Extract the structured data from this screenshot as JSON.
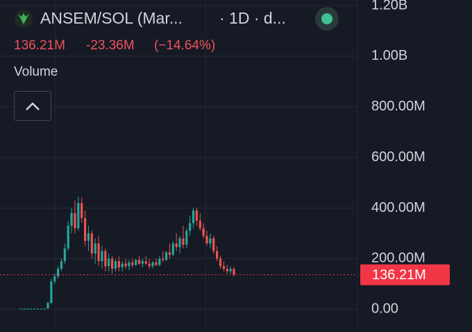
{
  "header": {
    "symbol": "ANSEM/SOL (Mar...",
    "interval": "· 1D · d...",
    "last": "136.21M",
    "change": "-23.36M",
    "change_pct": "(−14.64%)",
    "indicator": "Volume"
  },
  "chart_data": {
    "type": "candlestick",
    "categories": [
      null,
      null,
      null,
      null,
      null,
      null,
      null,
      null,
      null,
      null,
      null,
      null,
      null,
      null,
      null,
      null,
      null,
      null,
      null,
      null,
      null,
      null,
      null,
      null,
      null,
      null,
      null,
      null,
      null,
      null,
      null,
      null,
      null,
      null,
      null,
      null,
      null,
      null,
      null,
      null,
      null,
      null,
      null,
      null,
      null,
      null,
      null,
      null,
      null,
      null,
      null,
      null,
      null,
      null,
      null,
      null,
      null,
      null,
      null,
      null,
      null,
      null,
      null,
      null
    ],
    "open": [
      2,
      2,
      2,
      2,
      2,
      2,
      2,
      2,
      3,
      25,
      110,
      130,
      160,
      190,
      240,
      330,
      380,
      320,
      420,
      360,
      270,
      300,
      220,
      260,
      190,
      230,
      170,
      200,
      160,
      190,
      165,
      180,
      170,
      185,
      175,
      195,
      180,
      190,
      180,
      170,
      185,
      175,
      200,
      195,
      225,
      215,
      260,
      245,
      280,
      255,
      310,
      340,
      390,
      350,
      320,
      290,
      260,
      280,
      230,
      200,
      170,
      160,
      150,
      159.57
    ],
    "high": [
      3,
      3,
      3,
      3,
      3,
      3,
      3,
      3,
      30,
      120,
      140,
      170,
      200,
      260,
      350,
      400,
      430,
      445,
      440,
      390,
      330,
      310,
      280,
      290,
      250,
      240,
      220,
      210,
      200,
      210,
      190,
      200,
      195,
      200,
      200,
      210,
      200,
      210,
      200,
      190,
      200,
      210,
      230,
      230,
      260,
      270,
      300,
      290,
      330,
      320,
      370,
      400,
      400,
      380,
      340,
      310,
      300,
      290,
      250,
      210,
      190,
      175,
      170,
      168
    ],
    "low": [
      1,
      1,
      1,
      1,
      1,
      1,
      1,
      1,
      2,
      20,
      100,
      120,
      150,
      180,
      230,
      300,
      300,
      310,
      340,
      250,
      230,
      200,
      180,
      170,
      160,
      150,
      150,
      140,
      150,
      150,
      150,
      160,
      155,
      165,
      170,
      175,
      165,
      175,
      160,
      160,
      170,
      170,
      185,
      190,
      200,
      210,
      230,
      220,
      240,
      240,
      290,
      320,
      330,
      310,
      280,
      250,
      240,
      220,
      190,
      160,
      150,
      140,
      140,
      130
    ],
    "close": [
      2,
      2,
      2,
      2,
      2,
      2,
      2,
      2,
      25,
      110,
      130,
      160,
      190,
      240,
      330,
      380,
      320,
      420,
      360,
      270,
      300,
      220,
      260,
      190,
      230,
      170,
      200,
      160,
      190,
      165,
      180,
      170,
      185,
      175,
      195,
      180,
      190,
      180,
      170,
      185,
      175,
      200,
      195,
      225,
      215,
      260,
      245,
      280,
      255,
      310,
      340,
      390,
      350,
      320,
      290,
      260,
      280,
      230,
      200,
      170,
      160,
      150,
      159.57,
      136.21
    ],
    "up_color": "#26a69a",
    "down_color": "#ef5350",
    "ylim": [
      -90,
      1222
    ],
    "yticks": [
      {
        "value": 0,
        "label": "0.00"
      },
      {
        "value": 200,
        "label": "200.00M"
      },
      {
        "value": 400,
        "label": "400.00M"
      },
      {
        "value": 600,
        "label": "600.00M"
      },
      {
        "value": 800,
        "label": "800.00M"
      },
      {
        "value": 1000,
        "label": "1.00B"
      },
      {
        "value": 1200,
        "label": "1.20B"
      }
    ],
    "grid": true,
    "price_line": {
      "value": 136.21,
      "label": "136.21M",
      "color": "#f23645"
    }
  }
}
